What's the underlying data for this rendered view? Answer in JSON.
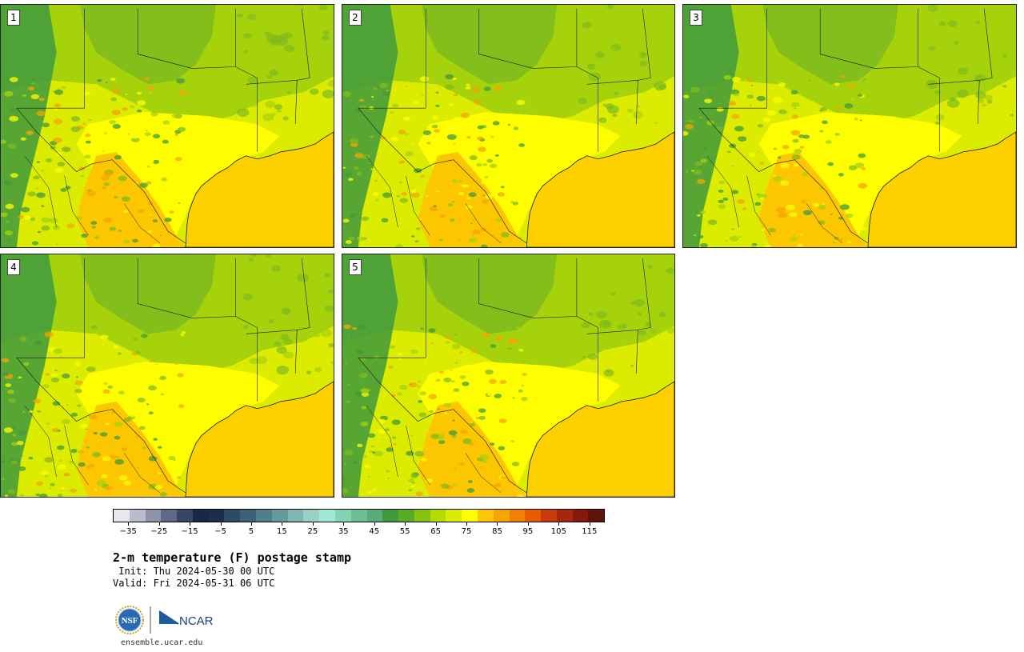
{
  "panels": [
    {
      "label": "1"
    },
    {
      "label": "2"
    },
    {
      "label": "3"
    },
    {
      "label": "4"
    },
    {
      "label": "5"
    }
  ],
  "map": {
    "variable": "2-m temperature",
    "units": "F",
    "colors": {
      "ocean": "#ffd000",
      "dark_green": "#3f9a3d",
      "mid_green": "#7fbb1c",
      "light_green": "#a6d20b",
      "yellow_green": "#dcec00",
      "yellow": "#fefe00",
      "orange_yellow": "#fcc600",
      "orange": "#f5a400",
      "border": "#1a1a1a"
    }
  },
  "colorbar": {
    "colors": [
      "#e7e8ed",
      "#b9bccb",
      "#8d93a8",
      "#5f6886",
      "#394566",
      "#1a2848",
      "#1b2f4d",
      "#2a4a66",
      "#3b6378",
      "#4f7f8a",
      "#659a9c",
      "#7fb6b1",
      "#9ad0c6",
      "#9ee8d7",
      "#84d4b4",
      "#6bbf94",
      "#55ad77",
      "#3f9a3d",
      "#5aab22",
      "#86c20f",
      "#b4da00",
      "#dcec00",
      "#fefe00",
      "#fcc600",
      "#f5a400",
      "#f37f00",
      "#e85a00",
      "#c83a0b",
      "#a8250e",
      "#86180d",
      "#5e140b"
    ],
    "ticks": [
      "−35",
      "−25",
      "−15",
      "−5",
      "5",
      "15",
      "25",
      "35",
      "45",
      "55",
      "65",
      "75",
      "85",
      "95",
      "105",
      "115"
    ],
    "min": -40,
    "max": 120,
    "tick_values": [
      -35,
      -25,
      -15,
      -5,
      5,
      15,
      25,
      35,
      45,
      55,
      65,
      75,
      85,
      95,
      105,
      115
    ]
  },
  "title": "2-m temperature (F) postage stamp",
  "init": " Init: Thu 2024-05-30 00 UTC",
  "valid": "Valid: Fri 2024-05-31 06 UTC",
  "logos": {
    "nsf": "NSF",
    "ncar": "NCAR"
  },
  "website": "ensemble.ucar.edu"
}
